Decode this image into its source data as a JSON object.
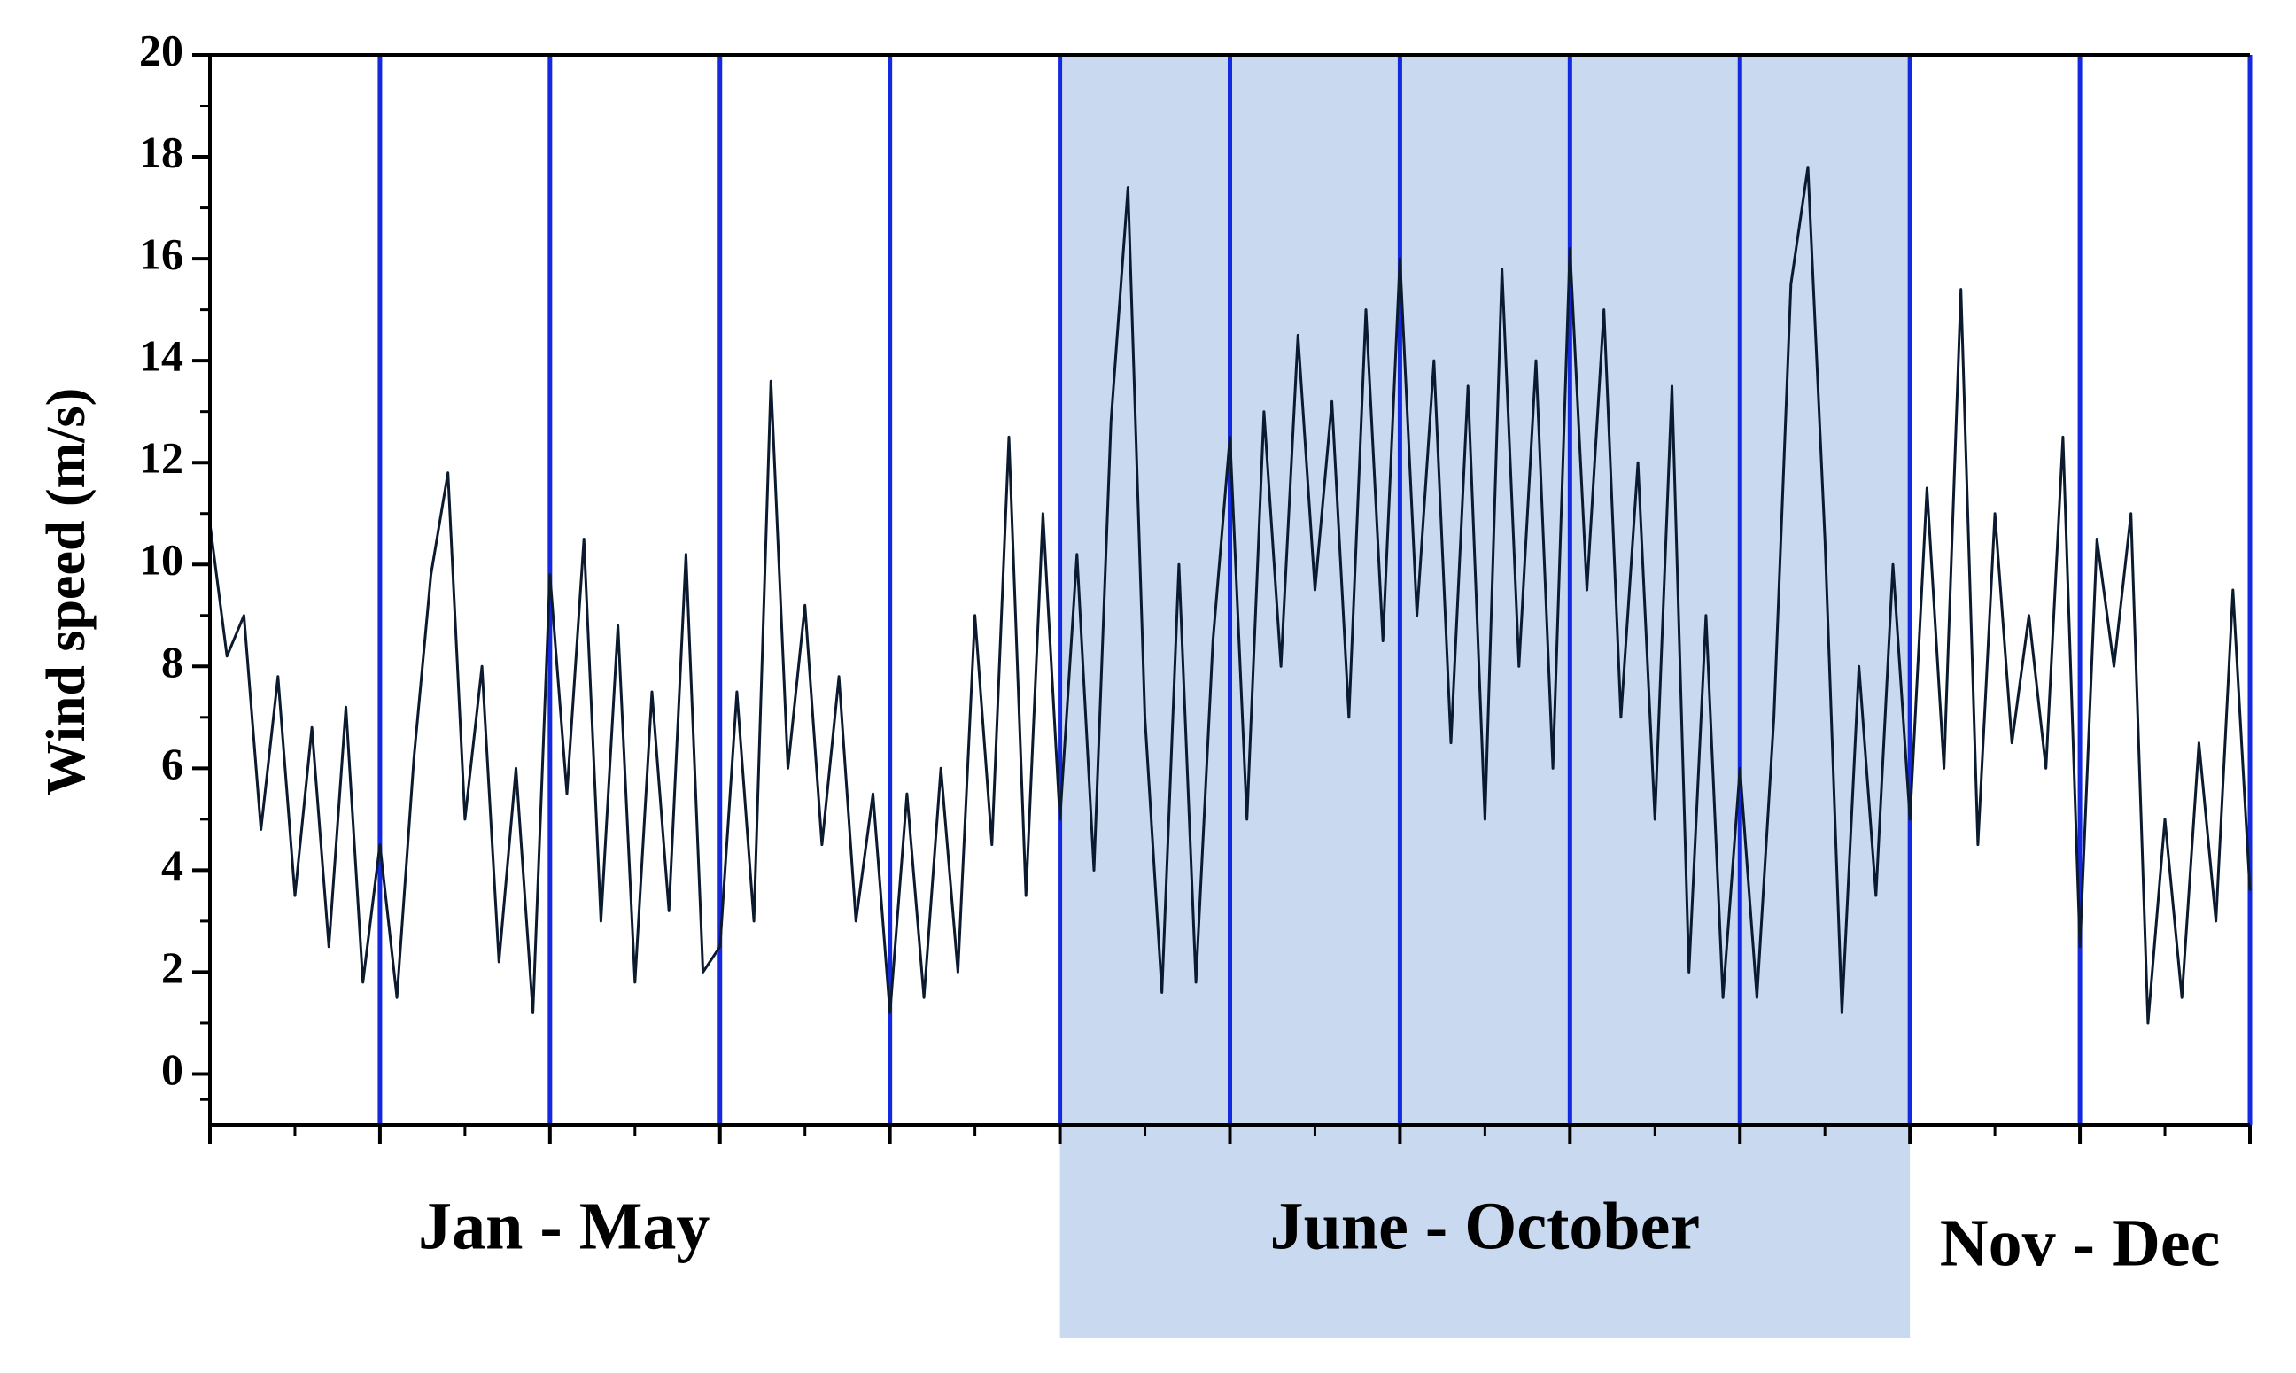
{
  "chart_data": {
    "type": "line",
    "y_label": "Wind speed (m/s)",
    "color": "#0b1a2e",
    "month_line_color": "#1428e0",
    "xlim": [
      0,
      12
    ],
    "ylim": [
      -1,
      20
    ],
    "yticks": [
      0,
      2,
      4,
      6,
      8,
      10,
      12,
      14,
      16,
      18,
      20
    ],
    "regions": [
      {
        "label": "Jan - May",
        "start": 0,
        "end": 5
      },
      {
        "label": "June - October",
        "start": 5,
        "end": 10,
        "color": "#c9daf0"
      },
      {
        "label": "Nov - Dec",
        "start": 10,
        "end": 12
      }
    ],
    "x": [
      0,
      0.1,
      0.2,
      0.3,
      0.4,
      0.5,
      0.6,
      0.7,
      0.8,
      0.9,
      1,
      1.1,
      1.2,
      1.3,
      1.4,
      1.5,
      1.6,
      1.7,
      1.8,
      1.9,
      2,
      2.1,
      2.2,
      2.3,
      2.4,
      2.5,
      2.6,
      2.7,
      2.8,
      2.9,
      3,
      3.1,
      3.2,
      3.3,
      3.4,
      3.5,
      3.6,
      3.7,
      3.8,
      3.9,
      4,
      4.1,
      4.2,
      4.3,
      4.4,
      4.5,
      4.6,
      4.7,
      4.8,
      4.9,
      5,
      5.1,
      5.2,
      5.3,
      5.4,
      5.5,
      5.6,
      5.7,
      5.8,
      5.9,
      6,
      6.1,
      6.2,
      6.3,
      6.4,
      6.5,
      6.6,
      6.7,
      6.8,
      6.9,
      7,
      7.1,
      7.2,
      7.3,
      7.4,
      7.5,
      7.6,
      7.7,
      7.8,
      7.9,
      8,
      8.1,
      8.2,
      8.3,
      8.4,
      8.5,
      8.6,
      8.7,
      8.8,
      8.9,
      9,
      9.1,
      9.2,
      9.3,
      9.4,
      9.5,
      9.6,
      9.7,
      9.8,
      9.9,
      10,
      10.1,
      10.2,
      10.3,
      10.4,
      10.5,
      10.6,
      10.7,
      10.8,
      10.9,
      11,
      11.1,
      11.2,
      11.3,
      11.4,
      11.5,
      11.6,
      11.7,
      11.8,
      11.9,
      12
    ],
    "values": [
      10.8,
      8.2,
      9.0,
      4.8,
      7.8,
      3.5,
      6.8,
      2.5,
      7.2,
      1.8,
      4.5,
      1.5,
      6.2,
      9.8,
      11.8,
      5.0,
      8.0,
      2.2,
      6.0,
      1.2,
      9.8,
      5.5,
      10.5,
      3.0,
      8.8,
      1.8,
      7.5,
      3.2,
      10.2,
      2.0,
      2.5,
      7.5,
      3.0,
      13.6,
      6.0,
      9.2,
      4.5,
      7.8,
      3.0,
      5.5,
      1.2,
      5.5,
      1.5,
      6.0,
      2.0,
      9.0,
      4.5,
      12.5,
      3.5,
      11.0,
      5.0,
      10.2,
      4.0,
      12.8,
      17.4,
      7.0,
      1.6,
      10.0,
      1.8,
      8.5,
      12.5,
      5.0,
      13.0,
      8.0,
      14.5,
      9.5,
      13.2,
      7.0,
      15.0,
      8.5,
      16.0,
      9.0,
      14.0,
      6.5,
      13.5,
      5.0,
      15.8,
      8.0,
      14.0,
      6.0,
      16.2,
      9.5,
      15.0,
      7.0,
      12.0,
      5.0,
      13.5,
      2.0,
      9.0,
      1.5,
      6.0,
      1.5,
      7.0,
      15.5,
      17.8,
      10.5,
      1.2,
      8.0,
      3.5,
      10.0,
      5.0,
      11.5,
      6.0,
      15.4,
      4.5,
      11.0,
      6.5,
      9.0,
      6.0,
      12.5,
      2.5,
      10.5,
      8.0,
      11.0,
      1.0,
      5.0,
      1.5,
      6.5,
      3.0,
      9.5,
      3.6
    ]
  }
}
